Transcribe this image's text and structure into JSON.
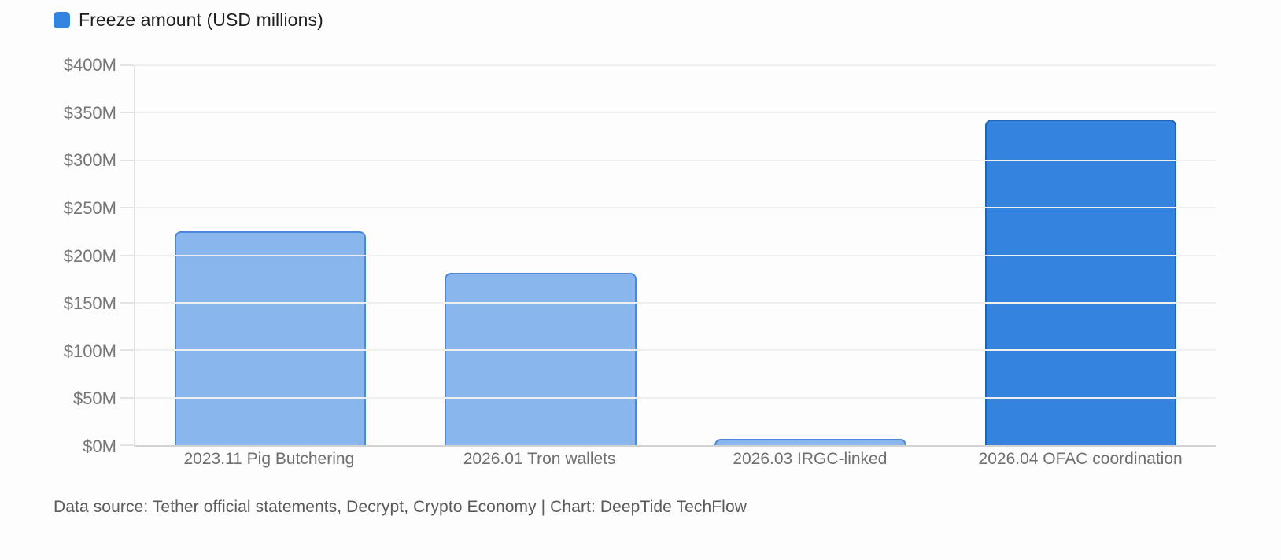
{
  "legend": {
    "label": "Freeze amount (USD millions)",
    "swatch_color": "#3484DF"
  },
  "chart_data": {
    "type": "bar",
    "title": "Freeze amount (USD millions)",
    "categories": [
      "2023.11 Pig Butchering",
      "2026.01 Tron wallets",
      "2026.03 IRGC-linked",
      "2026.04 OFAC coordination"
    ],
    "values": [
      225,
      181,
      7,
      343
    ],
    "xlabel": "",
    "ylabel": "Freeze amount (USD millions)",
    "ylim": [
      0,
      400
    ],
    "y_ticks": [
      {
        "label": "$400M",
        "value": 400
      },
      {
        "label": "$350M",
        "value": 350
      },
      {
        "label": "$300M",
        "value": 300
      },
      {
        "label": "$250M",
        "value": 250
      },
      {
        "label": "$200M",
        "value": 200
      },
      {
        "label": "$150M",
        "value": 150
      },
      {
        "label": "$100M",
        "value": 100
      },
      {
        "label": "$50M",
        "value": 50
      },
      {
        "label": "$0M",
        "value": 0
      }
    ],
    "grid": true,
    "legend_position": "top-left",
    "bar_styles": [
      {
        "fill": "#8AB6EE",
        "border": "#4C88DA"
      },
      {
        "fill": "#8AB6EE",
        "border": "#4C88DA"
      },
      {
        "fill": "#8AB6EE",
        "border": "#4C88DA"
      },
      {
        "fill": "#3484DF",
        "border": "#1F64B5"
      }
    ]
  },
  "footer": {
    "text": "Data source: Tether official statements, Decrypt, Crypto Economy | Chart: DeepTide TechFlow"
  }
}
